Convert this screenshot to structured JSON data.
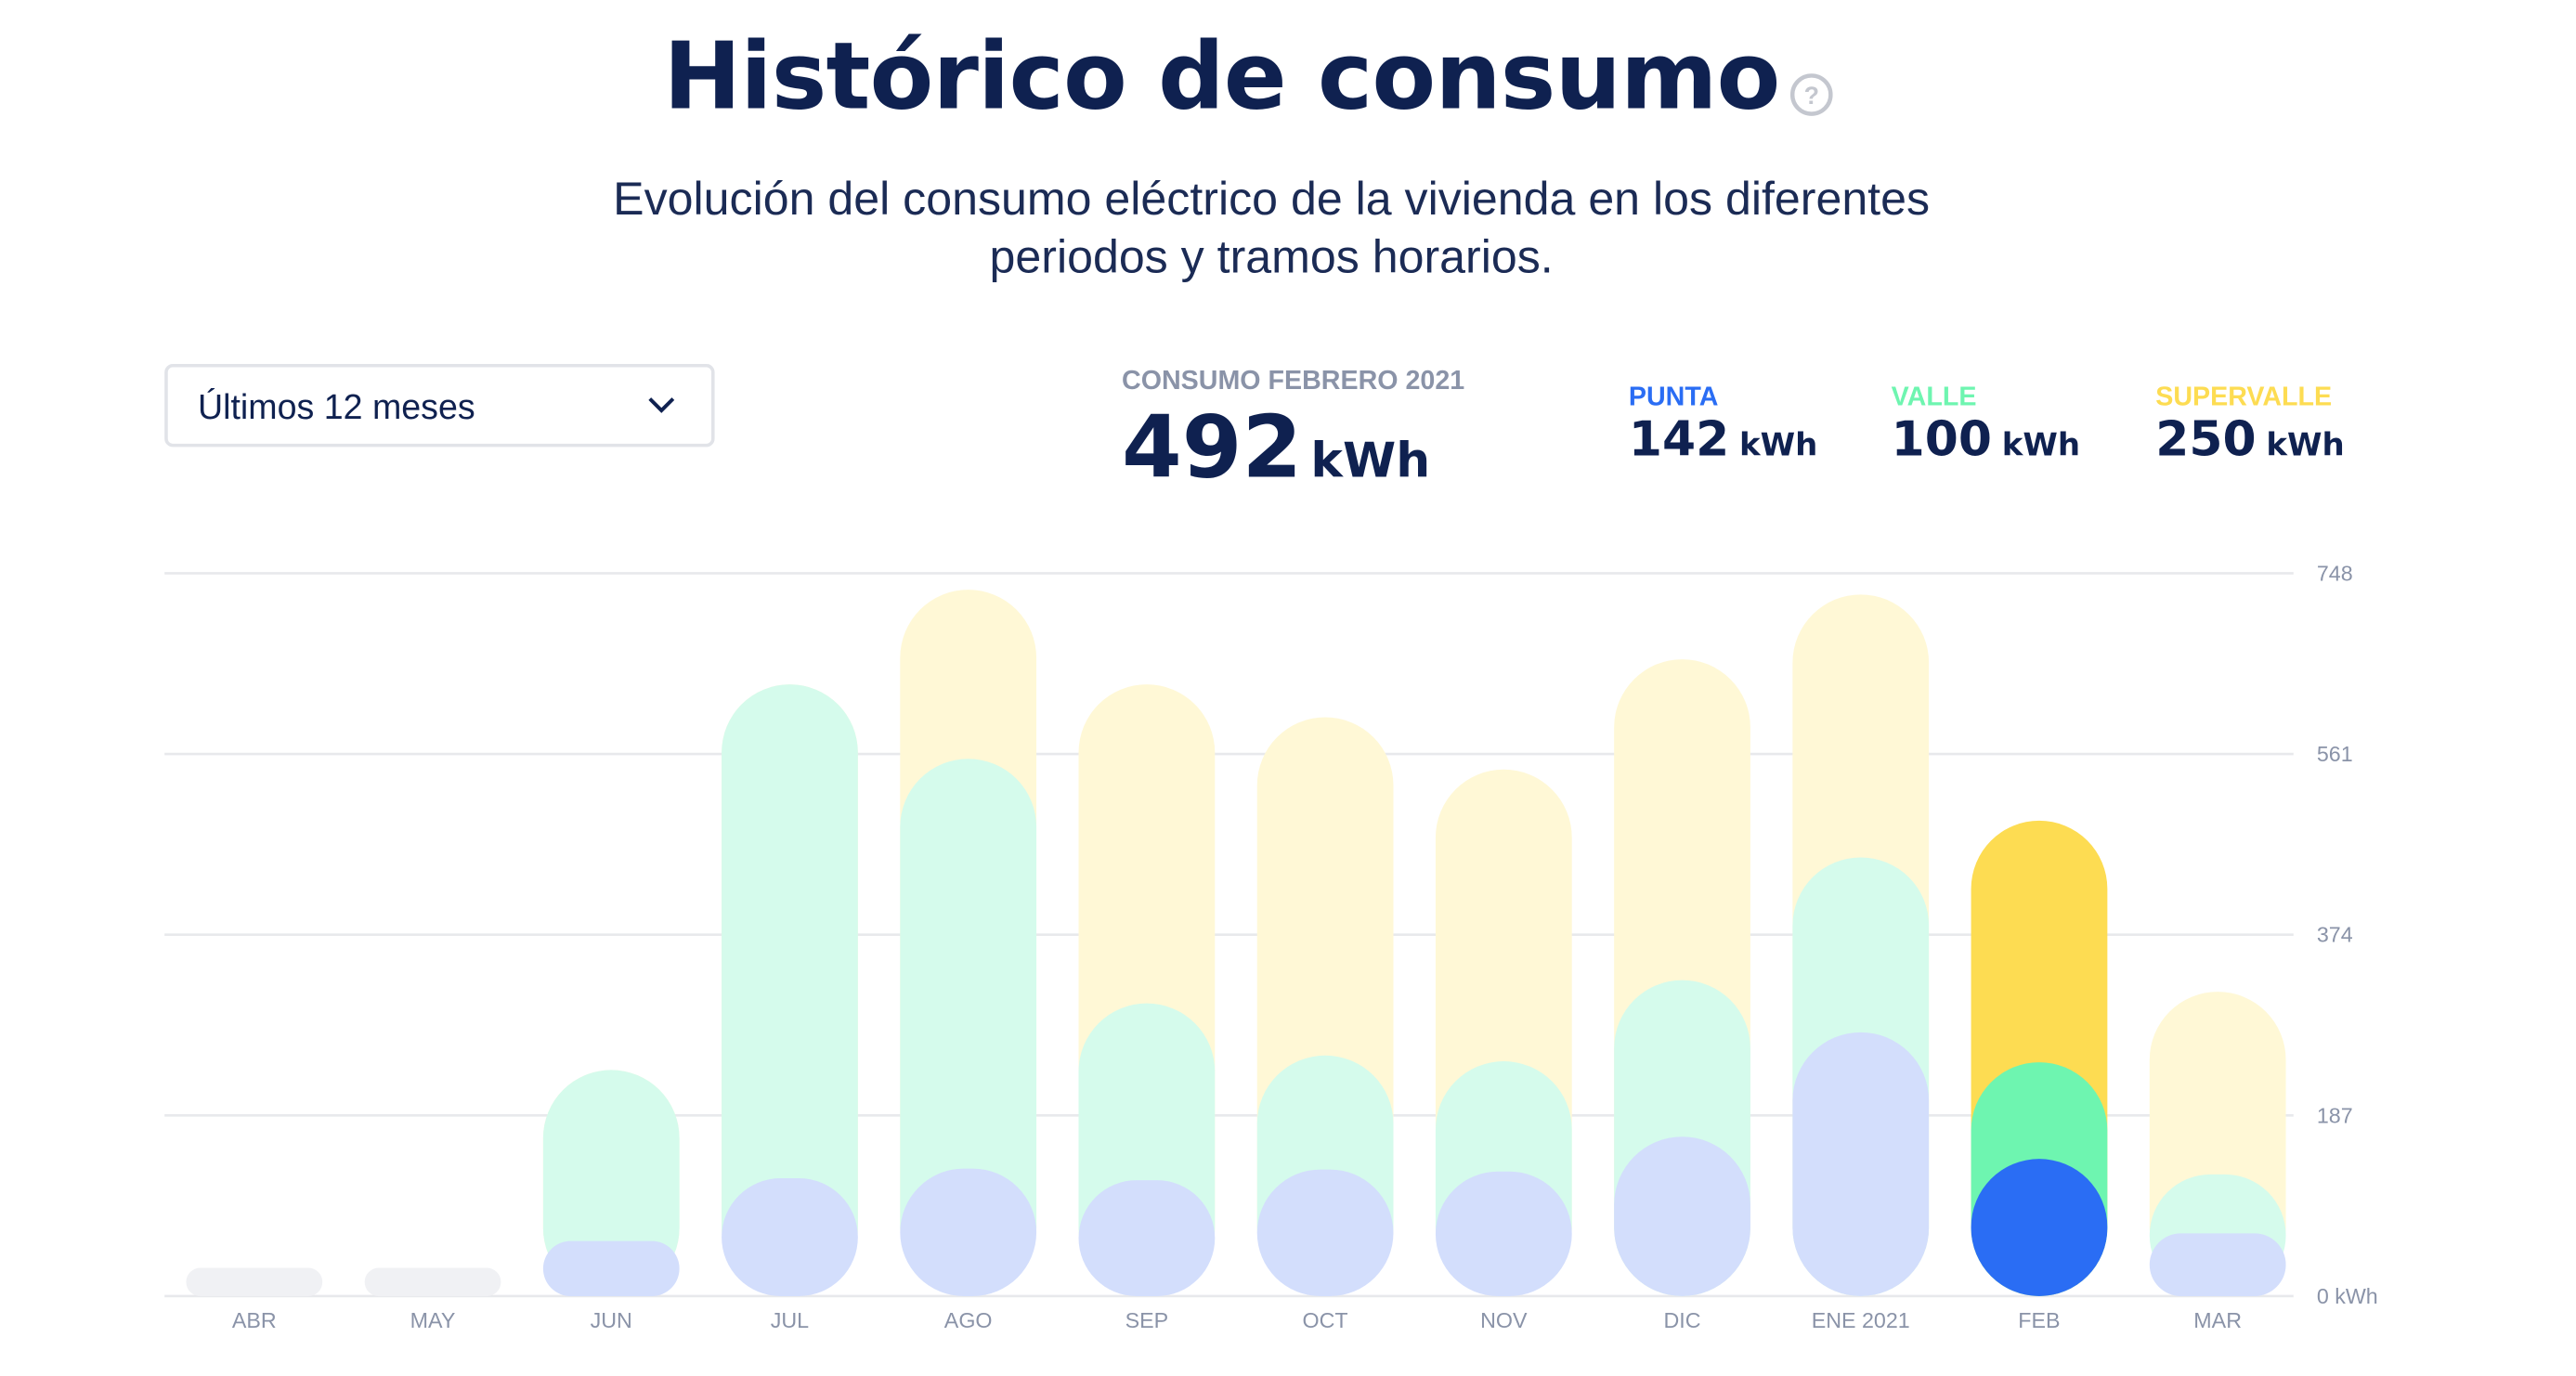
{
  "header": {
    "title": "Histórico de consumo",
    "subtitle": "Evolución del consumo eléctrico de la vivienda en los diferentes periodos y tramos horarios.",
    "dropdown": "Últimos 12 meses",
    "period_label": "CONSUMO FEBRERO 2021",
    "total": 492,
    "unit": "kWh"
  },
  "chart_data": {
    "type": "bar",
    "stacked": true,
    "selected": "FEB",
    "categories": [
      "ABR",
      "MAY",
      "JUN",
      "JUL",
      "AGO",
      "SEP",
      "OCT",
      "NOV",
      "DIC",
      "ENE 2021",
      "FEB",
      "MAR"
    ],
    "series": [
      {
        "name": "PUNTA",
        "color": "#2a6df4",
        "faded_color": "#d3defc",
        "values": [
          null,
          null,
          57,
          122,
          132,
          120,
          131,
          129,
          165,
          273,
          142,
          65
        ]
      },
      {
        "name": "VALLE",
        "color": "#6ef5b0",
        "faded_color": "#d5fbec",
        "values": [
          null,
          null,
          177,
          511,
          424,
          183,
          118,
          114,
          162,
          181,
          100,
          61
        ]
      },
      {
        "name": "SUPERVALLE",
        "color": "#fddc52",
        "faded_color": "#fff8d6",
        "values": [
          null,
          null,
          0,
          0,
          175,
          330,
          350,
          302,
          332,
          272,
          250,
          189
        ]
      }
    ],
    "ylim": [
      0,
      748
    ],
    "yticks": [
      {
        "value": 0,
        "label": "0 kWh"
      },
      187,
      374,
      561,
      748
    ],
    "grid": true
  }
}
